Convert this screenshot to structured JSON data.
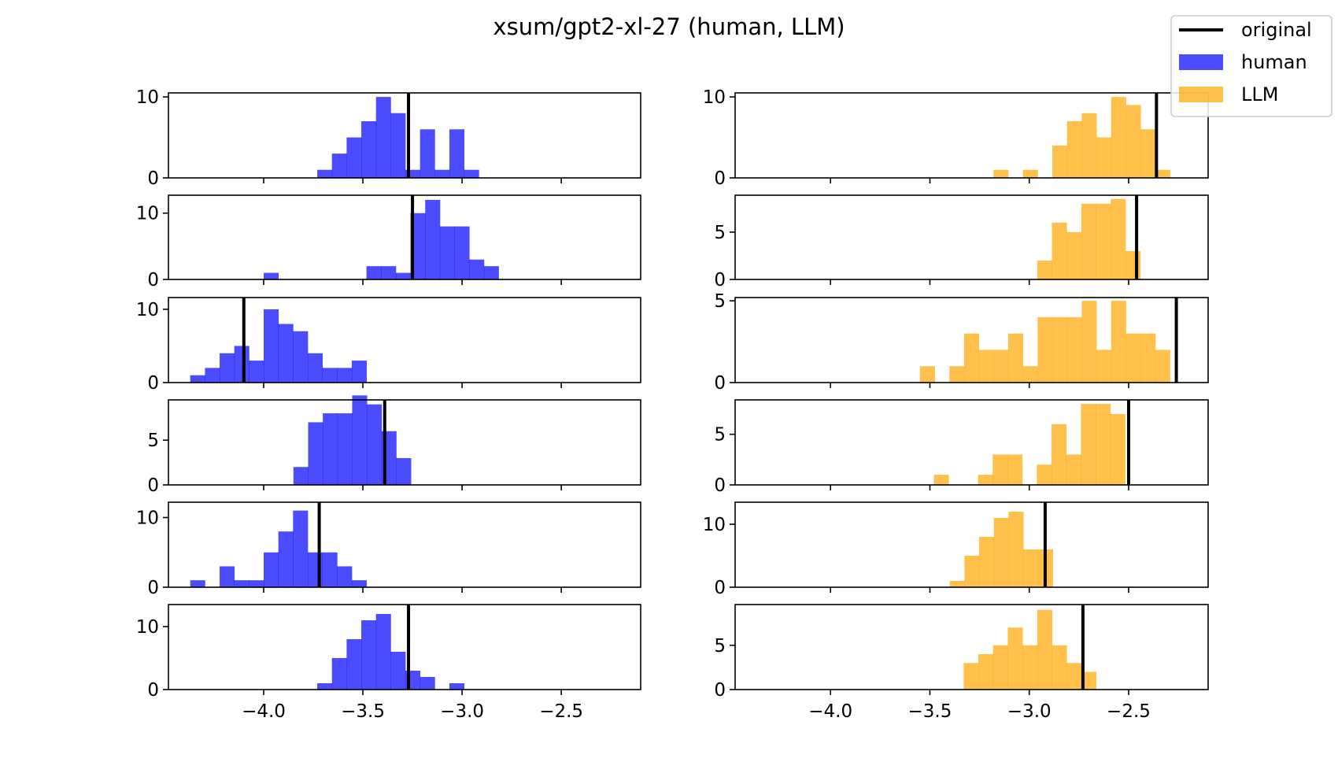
{
  "title": "xsum/gpt2-xl-27 (human, LLM)",
  "colors": {
    "human": "#0000ff",
    "llm": "#ffa500",
    "original": "#000000"
  },
  "legend": [
    {
      "key": "original",
      "label": "original",
      "kind": "line"
    },
    {
      "key": "human",
      "label": "human",
      "kind": "patch"
    },
    {
      "key": "llm",
      "label": "LLM",
      "kind": "patch"
    }
  ],
  "chart_data": {
    "type": "histogram",
    "bar_alpha": 0.7,
    "x_range": [
      -4.48,
      -2.1
    ],
    "shared_x_ticks": [
      -4.0,
      -3.5,
      -3.0,
      -2.5
    ],
    "x_tick_labels": [
      "−4.0",
      "−3.5",
      "−3.0",
      "−2.5"
    ],
    "rows": [
      {
        "human": {
          "ylim": [
            0,
            10.5
          ],
          "yticks": [
            0,
            10
          ],
          "bin_start": -3.73,
          "bin_width": 0.074,
          "counts": [
            1,
            3,
            5,
            7,
            10,
            8,
            1,
            6,
            1,
            6,
            1
          ],
          "original": -3.27
        },
        "llm": {
          "ylim": [
            0,
            10.5
          ],
          "yticks": [
            0,
            10
          ],
          "bin_start": -3.18,
          "bin_width": 0.074,
          "counts": [
            1,
            0,
            1,
            0,
            4,
            7,
            8,
            5,
            10,
            9,
            6,
            1
          ],
          "original": -2.36
        }
      },
      {
        "human": {
          "ylim": [
            0,
            12.7
          ],
          "yticks": [
            0,
            10
          ],
          "bin_start": -4.0,
          "bin_width": 0.074,
          "counts": [
            1,
            0,
            0,
            0,
            0,
            0,
            0,
            2,
            2,
            1,
            10,
            12,
            8,
            8,
            3,
            2
          ],
          "original": -3.25
        },
        "llm": {
          "ylim": [
            0,
            8.9
          ],
          "yticks": [
            0,
            5
          ],
          "bin_start": -2.96,
          "bin_width": 0.074,
          "counts": [
            2,
            6,
            5,
            8,
            8,
            8.5,
            3
          ],
          "original": -2.46
        }
      },
      {
        "human": {
          "ylim": [
            0,
            11.6
          ],
          "yticks": [
            0,
            10
          ],
          "bin_start": -4.37,
          "bin_width": 0.074,
          "counts": [
            1,
            2,
            4,
            5,
            3,
            10,
            8,
            7,
            4,
            2,
            2,
            3
          ],
          "original": -4.1
        },
        "llm": {
          "ylim": [
            0,
            5.2
          ],
          "yticks": [
            0,
            5
          ],
          "bin_start": -3.55,
          "bin_width": 0.074,
          "counts": [
            1,
            0,
            1,
            3,
            2,
            2,
            3,
            1,
            4,
            4,
            4,
            5,
            2,
            5,
            3,
            3,
            2
          ],
          "original": -2.26
        }
      },
      {
        "human": {
          "ylim": [
            0,
            9.5
          ],
          "yticks": [
            0,
            5
          ],
          "bin_start": -3.85,
          "bin_width": 0.074,
          "counts": [
            2,
            7,
            8,
            8,
            10,
            9,
            6,
            3
          ],
          "original": -3.39
        },
        "llm": {
          "ylim": [
            0,
            8.4
          ],
          "yticks": [
            0,
            5
          ],
          "bin_start": -3.48,
          "bin_width": 0.074,
          "counts": [
            1,
            0,
            0,
            1,
            3,
            3,
            0,
            2,
            6,
            3,
            8,
            8,
            7
          ],
          "original": -2.5
        }
      },
      {
        "human": {
          "ylim": [
            0,
            12.2
          ],
          "yticks": [
            0,
            10
          ],
          "bin_start": -4.37,
          "bin_width": 0.074,
          "counts": [
            1,
            0,
            3,
            1,
            1,
            5,
            8,
            11,
            5,
            5,
            3,
            1
          ],
          "original": -3.72
        },
        "llm": {
          "ylim": [
            0,
            13.5
          ],
          "yticks": [
            0,
            10
          ],
          "bin_start": -3.4,
          "bin_width": 0.074,
          "counts": [
            1,
            5,
            8,
            11,
            12,
            6,
            6
          ],
          "original": -2.92
        }
      },
      {
        "human": {
          "ylim": [
            0,
            13.5
          ],
          "yticks": [
            0,
            10
          ],
          "bin_start": -3.73,
          "bin_width": 0.074,
          "counts": [
            1,
            5,
            8,
            11,
            12,
            6,
            3,
            2,
            0,
            1
          ],
          "original": -3.27
        },
        "llm": {
          "ylim": [
            0,
            9.6
          ],
          "yticks": [
            0,
            5
          ],
          "bin_start": -3.33,
          "bin_width": 0.074,
          "counts": [
            3,
            4,
            5,
            7,
            5,
            9,
            5,
            3,
            2
          ],
          "original": -2.73
        }
      }
    ]
  }
}
